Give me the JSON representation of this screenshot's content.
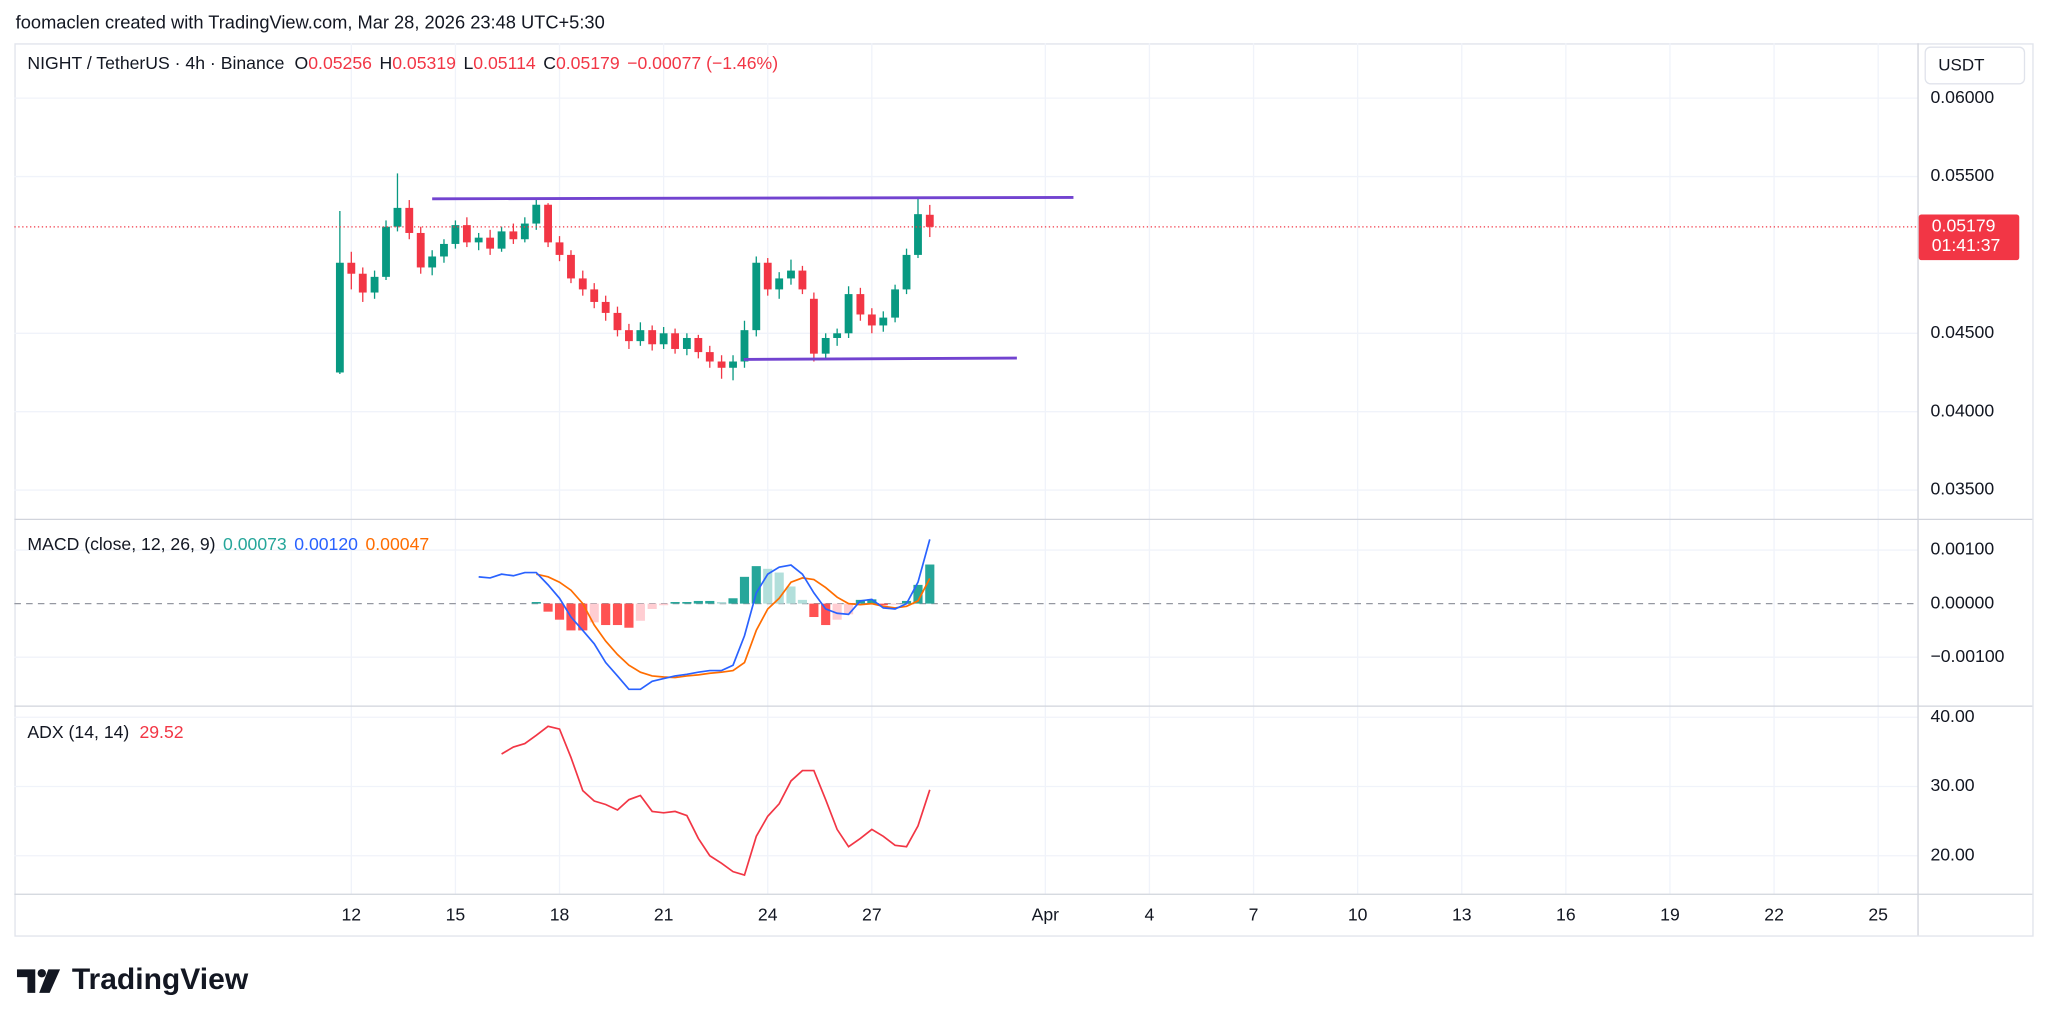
{
  "header": "foomaclen created with TradingView.com, Mar 28, 2026 23:48 UTC+5:30",
  "brand": "TradingView",
  "chart_data": [
    {
      "type": "candlestick",
      "symbol": "NIGHT / TetherUS · 4h · Binance",
      "ohlc_labels": [
        "O",
        "H",
        "L",
        "C"
      ],
      "change": "−0.00077 (−1.46%)",
      "currency": "USDT",
      "countdown": "01:41:37",
      "up_color": "#089981",
      "down_color": "#f23645",
      "grid": true,
      "x": [
        11.67,
        12,
        12.33,
        12.67,
        13,
        13.33,
        13.67,
        14,
        14.33,
        14.67,
        15,
        15.33,
        15.67,
        16,
        16.33,
        16.67,
        17,
        17.33,
        17.67,
        18,
        18.33,
        18.67,
        19,
        19.33,
        19.67,
        20,
        20.33,
        20.67,
        21,
        21.33,
        21.67,
        22,
        22.33,
        22.67,
        23,
        23.33,
        23.67,
        24,
        24.33,
        24.67,
        25,
        25.33,
        25.67,
        26,
        26.33,
        26.67,
        27,
        27.33,
        27.67,
        28,
        28.33,
        28.67
      ],
      "candles": [
        [
          0.0425,
          0.0528,
          0.0424,
          0.0495
        ],
        [
          0.0495,
          0.0502,
          0.0478,
          0.0488
        ],
        [
          0.0488,
          0.0492,
          0.047,
          0.0476
        ],
        [
          0.0476,
          0.049,
          0.0472,
          0.0486
        ],
        [
          0.0486,
          0.0522,
          0.0484,
          0.0518
        ],
        [
          0.0518,
          0.0552,
          0.0515,
          0.053
        ],
        [
          0.053,
          0.0535,
          0.051,
          0.0514
        ],
        [
          0.0514,
          0.0518,
          0.0488,
          0.0492
        ],
        [
          0.0492,
          0.0503,
          0.0487,
          0.0499
        ],
        [
          0.0499,
          0.051,
          0.0495,
          0.0507
        ],
        [
          0.0507,
          0.0522,
          0.0504,
          0.0519
        ],
        [
          0.0519,
          0.0524,
          0.0505,
          0.0508
        ],
        [
          0.0508,
          0.0514,
          0.0503,
          0.0511
        ],
        [
          0.0511,
          0.0516,
          0.05,
          0.0504
        ],
        [
          0.0504,
          0.0518,
          0.0502,
          0.0515
        ],
        [
          0.0515,
          0.052,
          0.0507,
          0.051
        ],
        [
          0.051,
          0.0524,
          0.0508,
          0.052
        ],
        [
          0.052,
          0.0536,
          0.0516,
          0.0532
        ],
        [
          0.0532,
          0.0533,
          0.0505,
          0.0508
        ],
        [
          0.0508,
          0.0512,
          0.0496,
          0.05
        ],
        [
          0.05,
          0.0503,
          0.0482,
          0.0485
        ],
        [
          0.0485,
          0.049,
          0.0474,
          0.0478
        ],
        [
          0.0478,
          0.0482,
          0.0466,
          0.047
        ],
        [
          0.047,
          0.0474,
          0.0458,
          0.0463
        ],
        [
          0.0463,
          0.0467,
          0.0448,
          0.0452
        ],
        [
          0.0452,
          0.0456,
          0.044,
          0.0445
        ],
        [
          0.0445,
          0.0457,
          0.0442,
          0.0452
        ],
        [
          0.0452,
          0.0455,
          0.0439,
          0.0443
        ],
        [
          0.0443,
          0.0454,
          0.044,
          0.045
        ],
        [
          0.045,
          0.0453,
          0.0437,
          0.044
        ],
        [
          0.044,
          0.045,
          0.0436,
          0.0447
        ],
        [
          0.0447,
          0.0449,
          0.0434,
          0.0438
        ],
        [
          0.0438,
          0.0442,
          0.0428,
          0.0432
        ],
        [
          0.0432,
          0.0436,
          0.0421,
          0.0428
        ],
        [
          0.0428,
          0.0436,
          0.042,
          0.0432
        ],
        [
          0.0432,
          0.0458,
          0.0428,
          0.0452
        ],
        [
          0.0452,
          0.0499,
          0.0448,
          0.0495
        ],
        [
          0.0495,
          0.0498,
          0.0474,
          0.0478
        ],
        [
          0.0478,
          0.0489,
          0.0472,
          0.0485
        ],
        [
          0.0485,
          0.0497,
          0.0481,
          0.049
        ],
        [
          0.049,
          0.0493,
          0.0475,
          0.0478
        ],
        [
          0.0472,
          0.0476,
          0.0432,
          0.0437
        ],
        [
          0.0437,
          0.045,
          0.0434,
          0.0447
        ],
        [
          0.0447,
          0.0453,
          0.0442,
          0.045
        ],
        [
          0.045,
          0.048,
          0.0447,
          0.0475
        ],
        [
          0.0475,
          0.0479,
          0.0458,
          0.0462
        ],
        [
          0.0462,
          0.0466,
          0.045,
          0.0455
        ],
        [
          0.0455,
          0.0464,
          0.0451,
          0.046
        ],
        [
          0.046,
          0.0481,
          0.0457,
          0.0478
        ],
        [
          0.0478,
          0.0504,
          0.0475,
          0.05
        ],
        [
          0.05,
          0.0536,
          0.0498,
          0.0526
        ],
        [
          0.05256,
          0.05319,
          0.05114,
          0.05179
        ]
      ],
      "xlim": [
        2.29,
        57.13
      ],
      "xticks": [
        12,
        15,
        18,
        21,
        24,
        27,
        {
          "value": 32,
          "label": "Apr"
        },
        {
          "value": 35,
          "label": "4"
        },
        {
          "value": 38,
          "label": "7"
        },
        {
          "value": 41,
          "label": "10"
        },
        {
          "value": 44,
          "label": "13"
        },
        {
          "value": 47,
          "label": "16"
        },
        {
          "value": 50,
          "label": "19"
        },
        {
          "value": 53,
          "label": "22"
        },
        {
          "value": 56,
          "label": "25"
        }
      ],
      "ylim": [
        0.03317,
        0.0635
      ],
      "yticks": [
        {
          "value": 0.035,
          "label": "0.03500"
        },
        {
          "value": 0.04,
          "label": "0.04000"
        },
        {
          "value": 0.045,
          "label": "0.04500"
        },
        {
          "value": 0.055,
          "label": "0.05500"
        },
        {
          "value": 0.06,
          "label": "0.06000"
        }
      ],
      "trend_color": "#7243d0",
      "trend_lines": [
        {
          "x": [
            14.33,
            32.81
          ],
          "y": [
            0.05358,
            0.05367
          ]
        },
        {
          "x": [
            23.31,
            31.18
          ],
          "y": [
            0.04333,
            0.04342
          ]
        }
      ]
    },
    {
      "type": "macd",
      "title": "MACD (close, 12, 26, 9)",
      "x": [
        15.67,
        16,
        16.33,
        16.67,
        17,
        17.33,
        17.67,
        18,
        18.33,
        18.67,
        19,
        19.33,
        19.67,
        20,
        20.33,
        20.67,
        21,
        21.33,
        21.67,
        22,
        22.33,
        22.67,
        23,
        23.33,
        23.67,
        24,
        24.33,
        24.67,
        25,
        25.33,
        25.67,
        26,
        26.33,
        26.67,
        27,
        27.33,
        27.67,
        28,
        28.33,
        28.67
      ],
      "histogram": {
        "colors": [
          "#26a69a",
          "#b2dfdb",
          "#ffcdd2",
          "#ff5252"
        ],
        "values": [
          null,
          null,
          null,
          null,
          null,
          3e-05,
          -0.00015,
          -0.0003,
          -0.0005,
          -0.0005,
          -0.00035,
          -0.0004,
          -0.0004,
          -0.00045,
          -0.00032,
          -0.0001,
          -3e-05,
          3e-05,
          3e-05,
          5e-05,
          5e-05,
          3e-05,
          0.0001,
          0.0005,
          0.0007,
          0.00065,
          0.00058,
          0.00032,
          7e-05,
          -0.00025,
          -0.0004,
          -0.0003,
          -0.0002,
          7e-05,
          8e-05,
          -3e-05,
          -2e-05,
          5e-05,
          0.00035,
          0.00073
        ]
      },
      "macd": {
        "color": "#2962ff",
        "last_label": "0.00120",
        "values": [
          0.0005,
          0.00048,
          0.00055,
          0.00052,
          0.00058,
          0.00058,
          0.00035,
          0.0001,
          -0.00025,
          -0.0005,
          -0.00075,
          -0.0011,
          -0.00135,
          -0.0016,
          -0.0016,
          -0.00145,
          -0.0014,
          -0.00135,
          -0.00132,
          -0.00128,
          -0.00125,
          -0.00125,
          -0.00115,
          -0.0006,
          0.0002,
          0.00055,
          0.00068,
          0.00072,
          0.00055,
          0.0002,
          -0.0001,
          -0.00018,
          -0.0002,
          5e-05,
          8e-05,
          -8e-05,
          -0.0001,
          0,
          0.0004,
          0.0012
        ]
      },
      "signal": {
        "color": "#ff6d00",
        "values": [
          null,
          null,
          null,
          null,
          null,
          0.00055,
          0.0005,
          0.0004,
          0.00025,
          0,
          -0.0004,
          -0.0007,
          -0.00095,
          -0.00115,
          -0.00128,
          -0.00135,
          -0.00137,
          -0.00138,
          -0.00135,
          -0.00133,
          -0.0013,
          -0.00128,
          -0.00125,
          -0.0011,
          -0.0005,
          -0.0001,
          0.0001,
          0.0004,
          0.00048,
          0.00045,
          0.0003,
          0.00012,
          0,
          -2e-05,
          0,
          -5e-05,
          -8e-05,
          -5e-05,
          5e-05,
          0.00047
        ]
      },
      "ylim": [
        -0.001902,
        0.001585
      ],
      "yticks": [
        {
          "value": -0.001,
          "label": "−0.00100"
        },
        {
          "value": 0,
          "label": "0.00000"
        },
        {
          "value": 0.001,
          "label": "0.00100"
        }
      ]
    },
    {
      "type": "line",
      "title": "ADX (14, 14)",
      "x": [
        15.67,
        16,
        16.33,
        16.67,
        17,
        17.33,
        17.67,
        18,
        18.33,
        18.67,
        19,
        19.33,
        19.67,
        20,
        20.33,
        20.67,
        21,
        21.33,
        21.67,
        22,
        22.33,
        22.67,
        23,
        23.33,
        23.67,
        24,
        24.33,
        24.67,
        25,
        25.33,
        25.67,
        26,
        26.33,
        26.67,
        27,
        27.33,
        27.67,
        28,
        28.33,
        28.67
      ],
      "series": [
        {
          "color": "#f23645",
          "values": [
            null,
            null,
            34.7,
            35.7,
            36.2,
            37.4,
            38.7,
            38.3,
            34.2,
            29.4,
            27.9,
            27.4,
            26.6,
            28.1,
            28.7,
            26.4,
            26.2,
            26.4,
            25.8,
            22.5,
            20,
            18.9,
            17.7,
            17.2,
            22.8,
            25.7,
            27.5,
            30.8,
            32.3,
            32.3,
            28.1,
            23.8,
            21.3,
            22.5,
            23.8,
            22.8,
            21.5,
            21.3,
            24.3,
            29.52
          ]
        }
      ],
      "ylim": [
        14.53,
        41.7
      ],
      "yticks": [
        {
          "value": 20,
          "label": "20.00"
        },
        {
          "value": 30,
          "label": "30.00"
        },
        {
          "value": 40,
          "label": "40.00"
        }
      ]
    }
  ]
}
